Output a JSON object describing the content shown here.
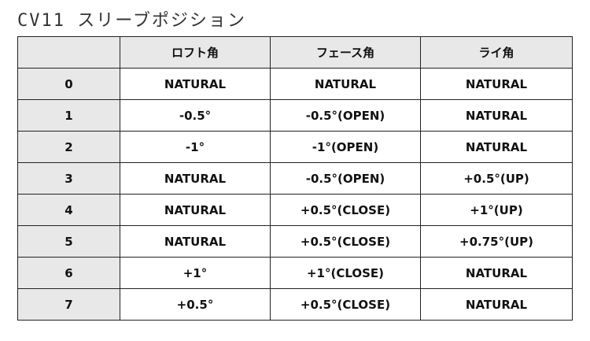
{
  "title": "CV11 スリーブポジション",
  "table": {
    "headers": [
      "",
      "ロフト角",
      "フェース角",
      "ライ角"
    ],
    "rows": [
      [
        "0",
        "NATURAL",
        "NATURAL",
        "NATURAL"
      ],
      [
        "1",
        "-0.5°",
        "-0.5°(OPEN)",
        "NATURAL"
      ],
      [
        "2",
        "-1°",
        "-1°(OPEN)",
        "NATURAL"
      ],
      [
        "3",
        "NATURAL",
        "-0.5°(OPEN)",
        "+0.5°(UP)"
      ],
      [
        "4",
        "NATURAL",
        "+0.5°(CLOSE)",
        "+1°(UP)"
      ],
      [
        "5",
        "NATURAL",
        "+0.5°(CLOSE)",
        "+0.75°(UP)"
      ],
      [
        "6",
        "+1°",
        "+1°(CLOSE)",
        "NATURAL"
      ],
      [
        "7",
        "+0.5°",
        "+0.5°(CLOSE)",
        "NATURAL"
      ]
    ]
  }
}
